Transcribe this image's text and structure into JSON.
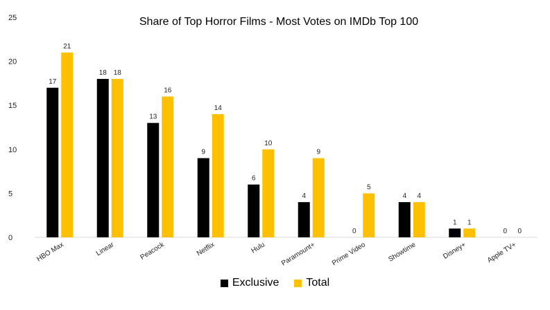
{
  "chart_data": {
    "type": "bar",
    "title": "Share of Top Horror Films - Most Votes on IMDb Top 100",
    "categories": [
      "HBO Max",
      "Linear",
      "Peacock",
      "Netflix",
      "Hulu",
      "Paramount+",
      "Prime Video",
      "Showtime",
      "Disney+",
      "Apple TV+"
    ],
    "series": [
      {
        "name": "Exclusive",
        "values": [
          17,
          18,
          13,
          9,
          6,
          4,
          0,
          4,
          1,
          0
        ],
        "color": "#000000"
      },
      {
        "name": "Total",
        "values": [
          21,
          18,
          16,
          14,
          10,
          9,
          5,
          4,
          1,
          0
        ],
        "color": "#FFC000"
      }
    ],
    "yticks": [
      "0",
      "5",
      "10",
      "15",
      "20",
      "25"
    ],
    "ylim": [
      0,
      25
    ],
    "grid": false,
    "legend_position": "bottom"
  }
}
